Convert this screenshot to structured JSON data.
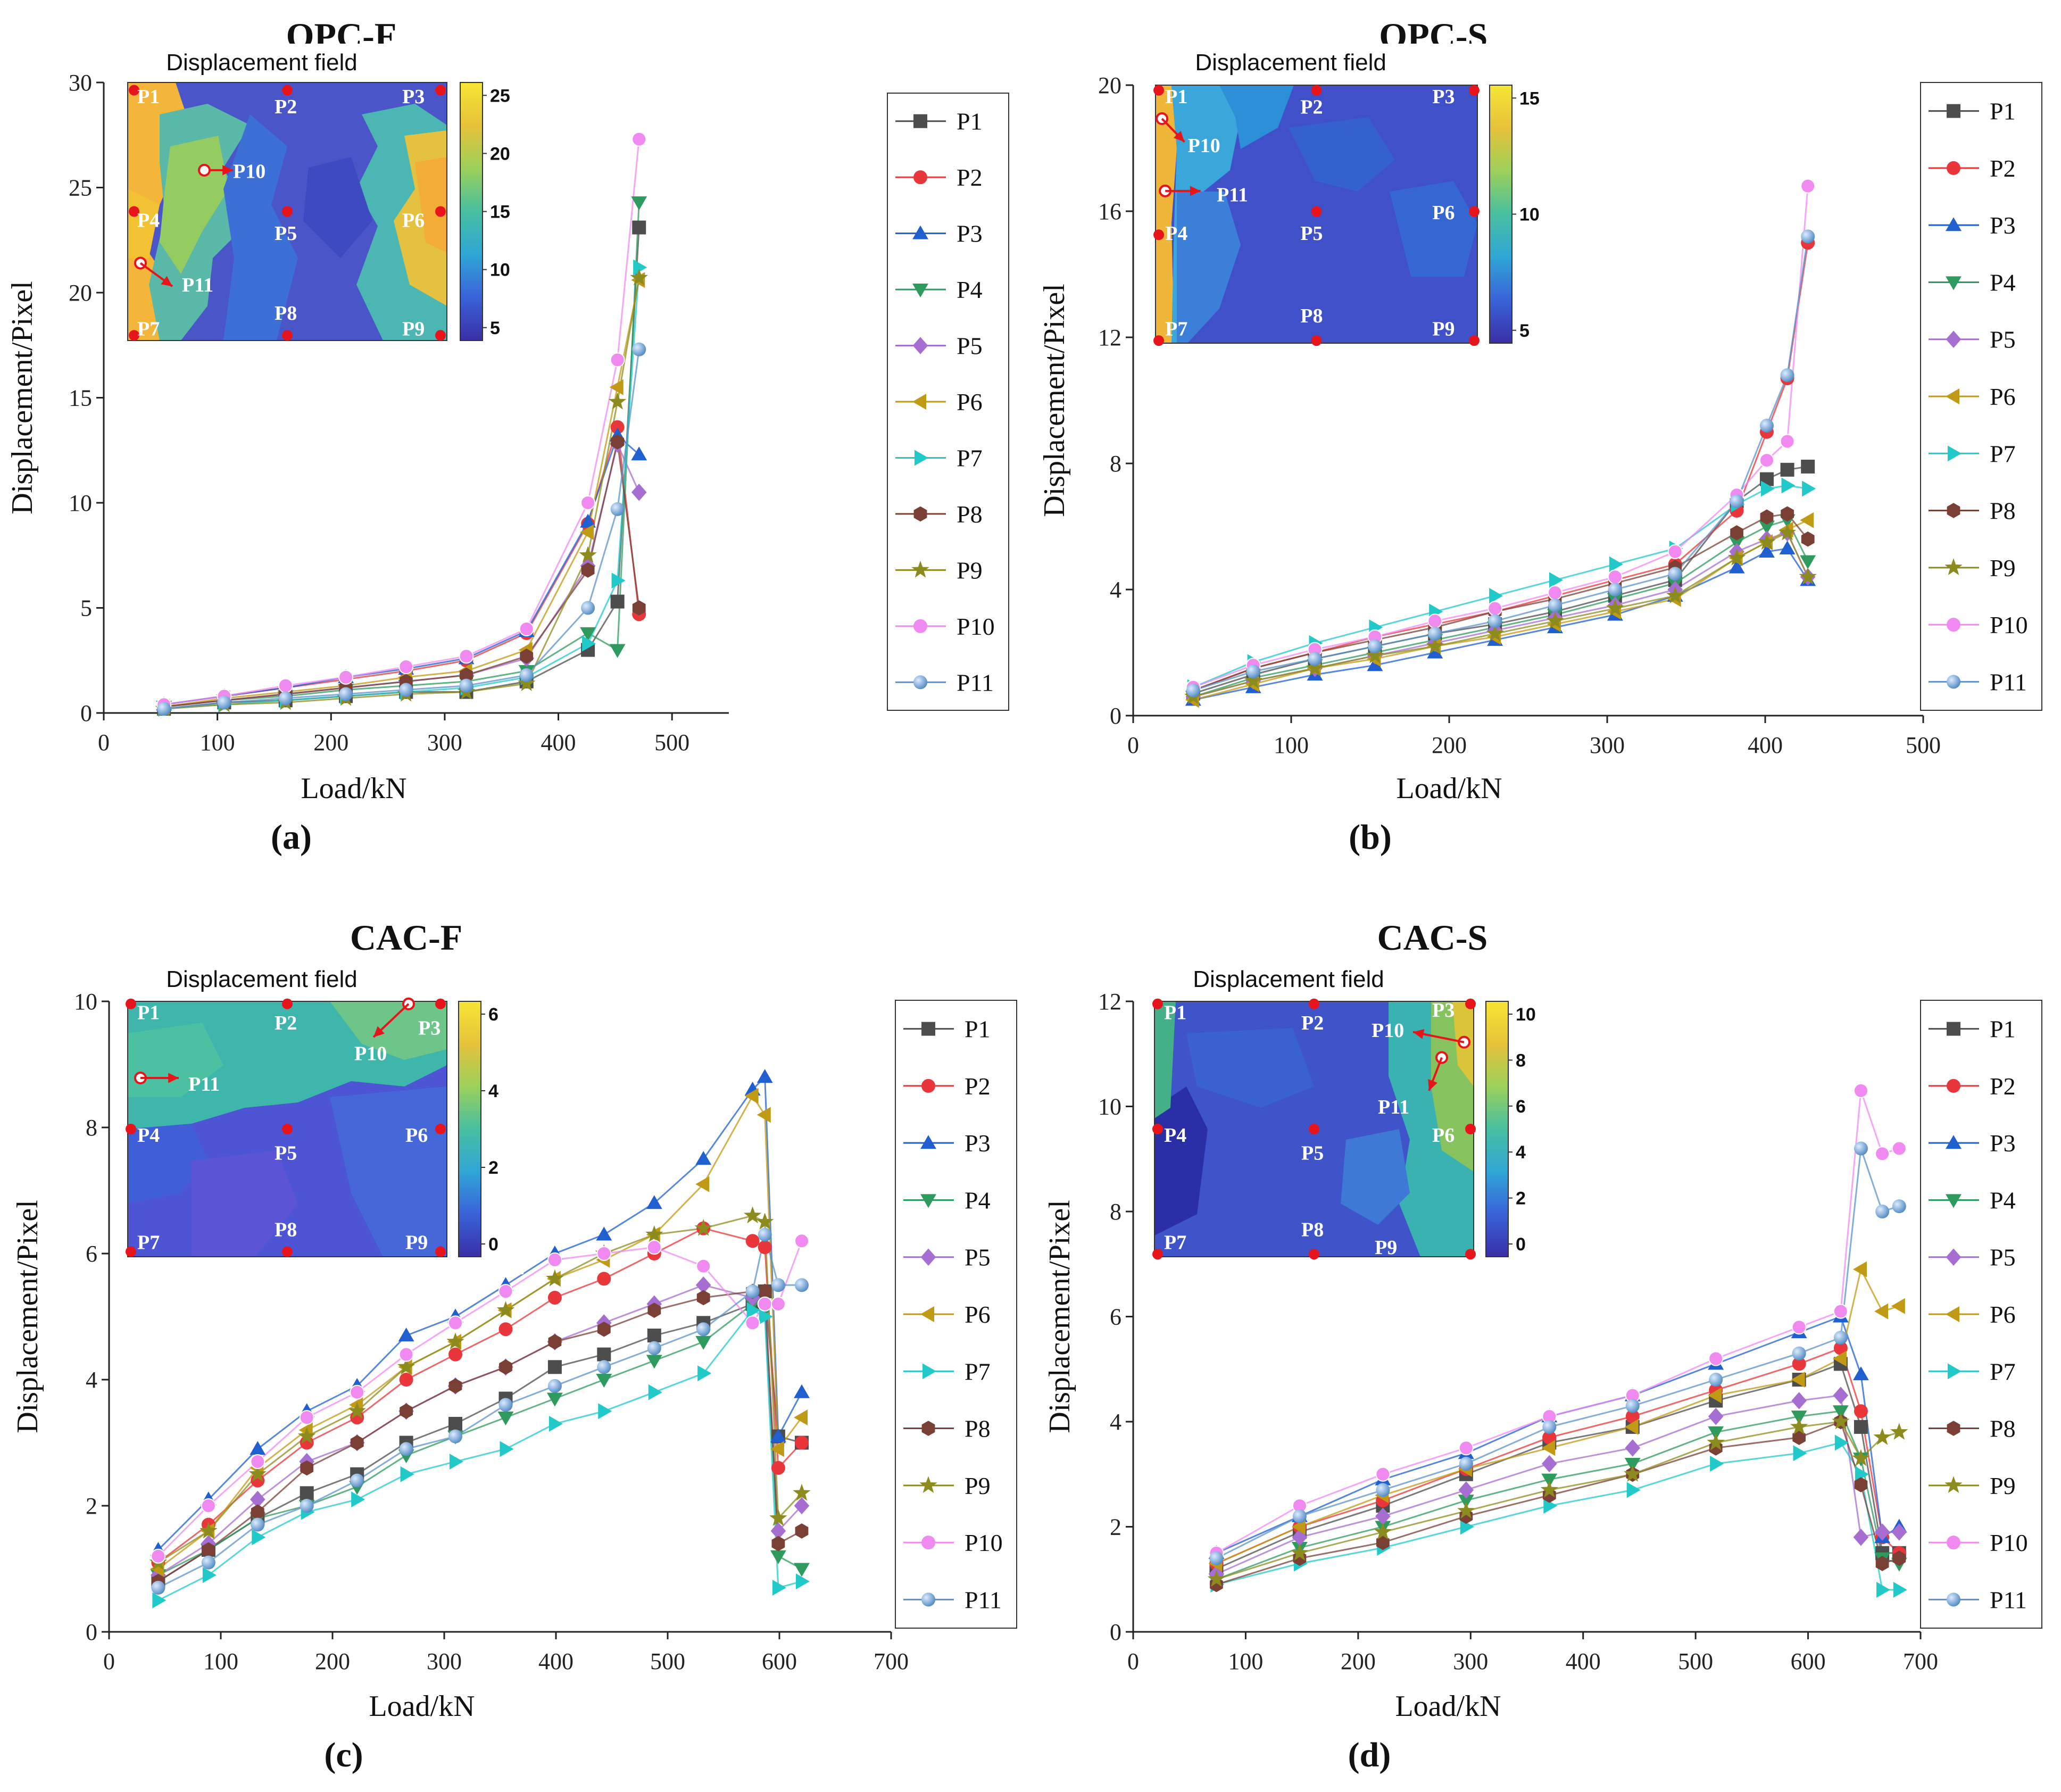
{
  "chart_data": [
    {
      "type": "line",
      "title": "OPC-F",
      "panel_label": "(a)",
      "xlabel": "Load/kN",
      "ylabel": "Displacement/Pixel",
      "xlim": [
        0,
        550
      ],
      "ylim": [
        0,
        30
      ],
      "xticks": [
        0,
        100,
        200,
        300,
        400,
        500
      ],
      "yticks": [
        0,
        5,
        10,
        15,
        20,
        25,
        30
      ],
      "x": [
        53,
        106,
        160,
        213,
        266,
        319,
        372,
        426,
        452,
        471
      ],
      "series": [
        {
          "name": "P1",
          "values": [
            0.2,
            0.5,
            0.6,
            0.8,
            1.0,
            1.0,
            1.5,
            3.0,
            5.3,
            23.1
          ]
        },
        {
          "name": "P2",
          "values": [
            0.4,
            0.8,
            1.2,
            1.6,
            2.0,
            2.5,
            3.8,
            9.0,
            13.6,
            4.7
          ]
        },
        {
          "name": "P3",
          "values": [
            0.4,
            0.8,
            1.2,
            1.7,
            2.1,
            2.6,
            3.9,
            9.1,
            13.2,
            12.3
          ]
        },
        {
          "name": "P4",
          "values": [
            0.3,
            0.6,
            0.8,
            1.1,
            1.3,
            1.5,
            2.0,
            3.8,
            3.0,
            24.3
          ]
        },
        {
          "name": "P5",
          "values": [
            0.3,
            0.6,
            0.9,
            1.2,
            1.5,
            1.8,
            2.6,
            7.0,
            12.8,
            10.5
          ]
        },
        {
          "name": "P6",
          "values": [
            0.3,
            0.7,
            1.0,
            1.3,
            1.7,
            2.0,
            3.0,
            8.6,
            15.5,
            20.6
          ]
        },
        {
          "name": "P7",
          "values": [
            0.2,
            0.4,
            0.6,
            0.8,
            1.0,
            1.2,
            1.7,
            3.3,
            6.3,
            21.2
          ]
        },
        {
          "name": "P8",
          "values": [
            0.3,
            0.6,
            0.9,
            1.2,
            1.5,
            1.8,
            2.7,
            6.8,
            12.9,
            5.0
          ]
        },
        {
          "name": "P9",
          "values": [
            0.2,
            0.4,
            0.5,
            0.7,
            0.9,
            1.0,
            1.4,
            7.5,
            14.8,
            20.7
          ]
        },
        {
          "name": "P10",
          "values": [
            0.4,
            0.8,
            1.3,
            1.7,
            2.2,
            2.7,
            4.0,
            10.0,
            16.8,
            27.3
          ]
        },
        {
          "name": "P11",
          "values": [
            0.2,
            0.5,
            0.7,
            0.9,
            1.1,
            1.3,
            1.8,
            5.0,
            9.7,
            17.3
          ]
        }
      ],
      "inset": {
        "title": "Displacement field",
        "colorbar_ticks": [
          "25",
          "20",
          "15",
          "10",
          "5"
        ],
        "points": [
          "P1",
          "P2",
          "P3",
          "P4",
          "P5",
          "P6",
          "P7",
          "P8",
          "P9",
          "P10",
          "P11"
        ]
      }
    },
    {
      "type": "line",
      "title": "OPC-S",
      "panel_label": "(b)",
      "xlabel": "Load/kN",
      "ylabel": "Displacement/Pixel",
      "xlim": [
        0,
        500
      ],
      "ylim": [
        0,
        20
      ],
      "xticks": [
        0,
        100,
        200,
        300,
        400,
        500
      ],
      "yticks": [
        0,
        4,
        8,
        12,
        16,
        20
      ],
      "x": [
        38,
        76,
        115,
        153,
        191,
        229,
        267,
        305,
        343,
        382,
        401,
        414,
        427
      ],
      "series": [
        {
          "name": "P1",
          "values": [
            0.7,
            1.3,
            1.8,
            2.2,
            2.6,
            2.9,
            3.3,
            3.8,
            4.3,
            6.8,
            7.5,
            7.8,
            7.9
          ]
        },
        {
          "name": "P2",
          "values": [
            0.8,
            1.5,
            2.0,
            2.5,
            2.9,
            3.3,
            3.8,
            4.3,
            4.8,
            6.5,
            9.0,
            10.7,
            15.0
          ]
        },
        {
          "name": "P3",
          "values": [
            0.5,
            0.9,
            1.3,
            1.6,
            2.0,
            2.4,
            2.8,
            3.2,
            3.8,
            4.7,
            5.2,
            5.3,
            4.3
          ]
        },
        {
          "name": "P4",
          "values": [
            0.6,
            1.2,
            1.6,
            2.0,
            2.4,
            2.8,
            3.2,
            3.7,
            4.2,
            5.5,
            6.0,
            6.2,
            4.9
          ]
        },
        {
          "name": "P5",
          "values": [
            0.6,
            1.1,
            1.5,
            1.9,
            2.3,
            2.7,
            3.1,
            3.5,
            4.0,
            5.2,
            5.6,
            5.8,
            4.4
          ]
        },
        {
          "name": "P6",
          "values": [
            0.5,
            1.0,
            1.5,
            1.8,
            2.2,
            2.5,
            2.9,
            3.3,
            3.7,
            5.0,
            5.5,
            5.9,
            6.2
          ]
        },
        {
          "name": "P7",
          "values": [
            0.9,
            1.7,
            2.3,
            2.8,
            3.3,
            3.8,
            4.3,
            4.8,
            5.3,
            6.7,
            7.2,
            7.3,
            7.2
          ]
        },
        {
          "name": "P8",
          "values": [
            0.8,
            1.5,
            2.0,
            2.4,
            2.8,
            3.3,
            3.7,
            4.2,
            4.7,
            5.8,
            6.3,
            6.4,
            5.6
          ]
        },
        {
          "name": "P9",
          "values": [
            0.6,
            1.1,
            1.5,
            1.9,
            2.2,
            2.6,
            3.0,
            3.4,
            3.8,
            5.0,
            5.5,
            5.8,
            4.4
          ]
        },
        {
          "name": "P10",
          "values": [
            0.9,
            1.6,
            2.1,
            2.5,
            3.0,
            3.4,
            3.9,
            4.4,
            5.2,
            7.0,
            8.1,
            8.7,
            16.8
          ]
        },
        {
          "name": "P11",
          "values": [
            0.8,
            1.4,
            1.8,
            2.2,
            2.6,
            3.0,
            3.5,
            4.0,
            4.5,
            6.8,
            9.2,
            10.8,
            15.2
          ]
        }
      ],
      "inset": {
        "title": "Displacement field",
        "colorbar_ticks": [
          "15",
          "10",
          "5"
        ],
        "points": [
          "P1",
          "P2",
          "P3",
          "P4",
          "P5",
          "P6",
          "P7",
          "P8",
          "P9",
          "P10",
          "P11"
        ]
      }
    },
    {
      "type": "line",
      "title": "CAC-F",
      "panel_label": "(c)",
      "xlabel": "Load/kN",
      "ylabel": "Displacement/Pixel",
      "xlim": [
        0,
        700
      ],
      "ylim": [
        0,
        10
      ],
      "xticks": [
        0,
        100,
        200,
        300,
        400,
        500,
        600,
        700
      ],
      "yticks": [
        0,
        2,
        4,
        6,
        8,
        10
      ],
      "x": [
        44,
        89,
        133,
        177,
        222,
        266,
        310,
        355,
        399,
        443,
        488,
        532,
        576,
        587,
        599,
        620
      ],
      "series": [
        {
          "name": "P1",
          "values": [
            0.8,
            1.3,
            1.8,
            2.2,
            2.5,
            3.0,
            3.3,
            3.7,
            4.2,
            4.4,
            4.7,
            4.9,
            5.2,
            5.4,
            3.1,
            3.0
          ]
        },
        {
          "name": "P2",
          "values": [
            1.1,
            1.7,
            2.4,
            3.0,
            3.4,
            4.0,
            4.4,
            4.8,
            5.3,
            5.6,
            6.0,
            6.4,
            6.2,
            6.1,
            2.6,
            3.0
          ]
        },
        {
          "name": "P3",
          "values": [
            1.3,
            2.1,
            2.9,
            3.5,
            3.9,
            4.7,
            5.0,
            5.5,
            6.0,
            6.3,
            6.8,
            7.5,
            8.6,
            8.8,
            3.1,
            3.8
          ]
        },
        {
          "name": "P4",
          "values": [
            0.9,
            1.3,
            1.8,
            2.0,
            2.3,
            2.8,
            3.1,
            3.4,
            3.7,
            4.0,
            4.3,
            4.6,
            5.2,
            5.1,
            1.2,
            1.0
          ]
        },
        {
          "name": "P5",
          "values": [
            0.9,
            1.4,
            2.1,
            2.7,
            3.0,
            3.5,
            3.9,
            4.2,
            4.6,
            4.9,
            5.2,
            5.5,
            5.3,
            5.2,
            1.6,
            2.0
          ]
        },
        {
          "name": "P6",
          "values": [
            1.0,
            1.6,
            2.6,
            3.2,
            3.6,
            4.2,
            4.6,
            5.1,
            5.6,
            5.9,
            6.3,
            7.1,
            8.5,
            8.2,
            2.9,
            3.4
          ]
        },
        {
          "name": "P7",
          "values": [
            0.5,
            0.9,
            1.5,
            1.9,
            2.1,
            2.5,
            2.7,
            2.9,
            3.3,
            3.5,
            3.8,
            4.1,
            5.1,
            5.0,
            0.7,
            0.8
          ]
        },
        {
          "name": "P8",
          "values": [
            0.8,
            1.3,
            1.9,
            2.6,
            3.0,
            3.5,
            3.9,
            4.2,
            4.6,
            4.8,
            5.1,
            5.3,
            5.4,
            5.4,
            1.4,
            1.6
          ]
        },
        {
          "name": "P9",
          "values": [
            1.1,
            1.6,
            2.5,
            3.1,
            3.5,
            4.2,
            4.6,
            5.1,
            5.6,
            6.0,
            6.3,
            6.4,
            6.6,
            6.5,
            1.8,
            2.2
          ]
        },
        {
          "name": "P10",
          "values": [
            1.2,
            2.0,
            2.7,
            3.4,
            3.8,
            4.4,
            4.9,
            5.4,
            5.9,
            6.0,
            6.1,
            5.8,
            4.9,
            5.2,
            5.2,
            6.2
          ]
        },
        {
          "name": "P11",
          "values": [
            0.7,
            1.1,
            1.7,
            2.0,
            2.4,
            2.9,
            3.1,
            3.6,
            3.9,
            4.2,
            4.5,
            4.8,
            5.4,
            6.3,
            5.5,
            5.5
          ]
        }
      ],
      "inset": {
        "title": "Displacement field",
        "colorbar_ticks": [
          "6",
          "4",
          "2",
          "0"
        ],
        "points": [
          "P1",
          "P2",
          "P3",
          "P4",
          "P5",
          "P6",
          "P7",
          "P8",
          "P9",
          "P10",
          "P11"
        ]
      }
    },
    {
      "type": "line",
      "title": "CAC-S",
      "panel_label": "(d)",
      "xlabel": "Load/kN",
      "ylabel": "Displacement/Pixel",
      "xlim": [
        0,
        700
      ],
      "ylim": [
        0,
        12
      ],
      "xticks": [
        0,
        100,
        200,
        300,
        400,
        500,
        600,
        700
      ],
      "yticks": [
        0,
        2,
        4,
        6,
        8,
        10,
        12
      ],
      "x": [
        74,
        148,
        222,
        296,
        370,
        444,
        518,
        592,
        629,
        647,
        666,
        681
      ],
      "series": [
        {
          "name": "P1",
          "values": [
            1.2,
            1.9,
            2.4,
            3.0,
            3.6,
            3.9,
            4.4,
            4.8,
            5.1,
            3.9,
            1.5,
            1.5
          ]
        },
        {
          "name": "P2",
          "values": [
            1.3,
            2.0,
            2.5,
            3.1,
            3.7,
            4.1,
            4.6,
            5.1,
            5.4,
            4.2,
            1.8,
            1.5
          ]
        },
        {
          "name": "P3",
          "values": [
            1.5,
            2.2,
            2.9,
            3.4,
            4.1,
            4.5,
            5.1,
            5.7,
            6.0,
            4.9,
            1.8,
            2.0
          ]
        },
        {
          "name": "P4",
          "values": [
            1.0,
            1.6,
            2.0,
            2.5,
            2.9,
            3.2,
            3.8,
            4.1,
            4.2,
            3.3,
            1.4,
            1.3
          ]
        },
        {
          "name": "P5",
          "values": [
            1.1,
            1.8,
            2.2,
            2.7,
            3.2,
            3.5,
            4.1,
            4.4,
            4.5,
            1.8,
            1.9,
            1.9
          ]
        },
        {
          "name": "P6",
          "values": [
            1.3,
            2.0,
            2.6,
            3.1,
            3.5,
            3.9,
            4.5,
            4.8,
            5.2,
            6.9,
            6.1,
            6.2
          ]
        },
        {
          "name": "P7",
          "values": [
            0.9,
            1.3,
            1.6,
            2.0,
            2.4,
            2.7,
            3.2,
            3.4,
            3.6,
            3.0,
            0.8,
            0.8
          ]
        },
        {
          "name": "P8",
          "values": [
            0.9,
            1.4,
            1.7,
            2.2,
            2.6,
            3.0,
            3.5,
            3.7,
            4.0,
            2.8,
            1.3,
            1.4
          ]
        },
        {
          "name": "P9",
          "values": [
            1.0,
            1.5,
            1.9,
            2.3,
            2.7,
            3.0,
            3.6,
            3.9,
            4.0,
            3.3,
            3.7,
            3.8
          ]
        },
        {
          "name": "P10",
          "values": [
            1.5,
            2.4,
            3.0,
            3.5,
            4.1,
            4.5,
            5.2,
            5.8,
            6.1,
            10.3,
            9.1,
            9.2
          ]
        },
        {
          "name": "P11",
          "values": [
            1.4,
            2.2,
            2.7,
            3.2,
            3.9,
            4.3,
            4.8,
            5.3,
            5.6,
            9.2,
            8.0,
            8.1
          ]
        }
      ],
      "inset": {
        "title": "Displacement field",
        "colorbar_ticks": [
          "10",
          "8",
          "6",
          "4",
          "2",
          "0"
        ],
        "points": [
          "P1",
          "P2",
          "P3",
          "P4",
          "P5",
          "P6",
          "P7",
          "P8",
          "P9",
          "P10",
          "P11"
        ]
      }
    }
  ],
  "styles": {
    "P1": {
      "color": "#4d4d4d",
      "marker": "square"
    },
    "P2": {
      "color": "#e8363a",
      "marker": "circle"
    },
    "P3": {
      "color": "#1f5fd0",
      "marker": "triangle-up"
    },
    "P4": {
      "color": "#2e9a5e",
      "marker": "triangle-down"
    },
    "P5": {
      "color": "#a56ed0",
      "marker": "diamond"
    },
    "P6": {
      "color": "#c09a14",
      "marker": "triangle-left"
    },
    "P7": {
      "color": "#22c9c9",
      "marker": "triangle-right"
    },
    "P8": {
      "color": "#7a3f35",
      "marker": "hexagon"
    },
    "P9": {
      "color": "#8c8c1e",
      "marker": "star"
    },
    "P10": {
      "color": "#f08af0",
      "marker": "circle"
    },
    "P11": {
      "color": "#5b93c9",
      "marker": "circle"
    }
  }
}
